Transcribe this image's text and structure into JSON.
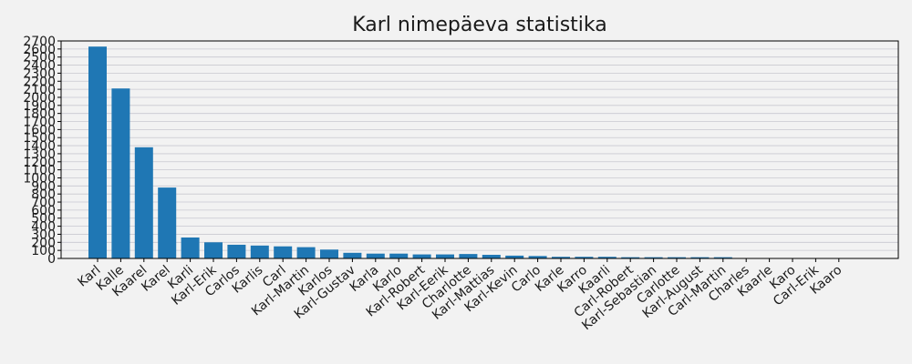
{
  "colors": {
    "background": "#f2f2f2",
    "bar": "#1f77b4",
    "grid": "#c8c8d0"
  },
  "chart_data": {
    "type": "bar",
    "title": "Karl nimepäeva statistika",
    "xlabel": "",
    "ylabel": "",
    "grid": true,
    "ylim": [
      0,
      2700
    ],
    "yticks": [
      0,
      100,
      200,
      300,
      400,
      500,
      600,
      700,
      800,
      900,
      1000,
      1100,
      1200,
      1300,
      1400,
      1500,
      1600,
      1700,
      1800,
      1900,
      2000,
      2100,
      2200,
      2300,
      2400,
      2500,
      2600,
      2700
    ],
    "categories": [
      "Karl",
      "Kalle",
      "Kaarel",
      "Karel",
      "Karli",
      "Karl-Erik",
      "Carlos",
      "Karlis",
      "Carl",
      "Karl-Martin",
      "Karlos",
      "Karl-Gustav",
      "Karla",
      "Karlo",
      "Karl-Robert",
      "Karl-Eerik",
      "Charlotte",
      "Karl-Mattias",
      "Karl-Kevin",
      "Carlo",
      "Karle",
      "Karro",
      "Kaarli",
      "Carl-Robert",
      "Karl-Sebastian",
      "Carlotte",
      "Karl-August",
      "Carl-Martin",
      "Charles",
      "Kaarle",
      "Karo",
      "Carl-Erik",
      "Kaaro"
    ],
    "values": [
      2630,
      2110,
      1380,
      880,
      260,
      200,
      170,
      160,
      150,
      140,
      110,
      70,
      60,
      60,
      50,
      50,
      55,
      45,
      35,
      30,
      20,
      20,
      20,
      15,
      15,
      15,
      15,
      15,
      5,
      5,
      5,
      5,
      5
    ]
  }
}
